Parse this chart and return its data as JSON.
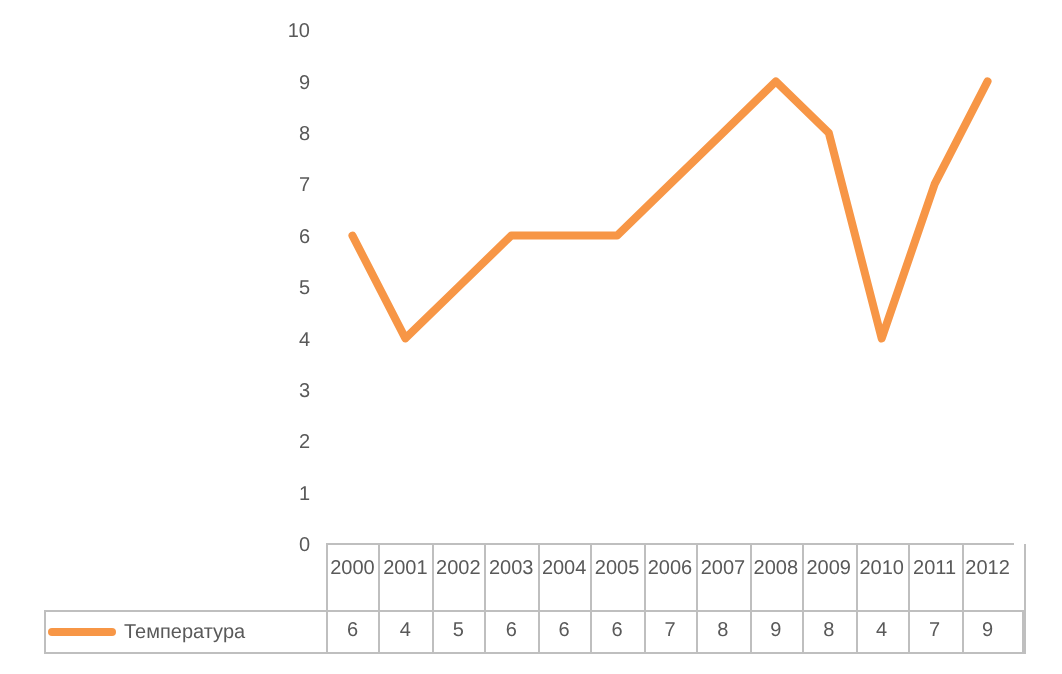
{
  "chart_data": {
    "type": "line",
    "categories": [
      "2000",
      "2001",
      "2002",
      "2003",
      "2004",
      "2005",
      "2006",
      "2007",
      "2008",
      "2009",
      "2010",
      "2011",
      "2012"
    ],
    "series": [
      {
        "name": "Температура",
        "color": "#f79646",
        "values": [
          6,
          4,
          5,
          6,
          6,
          6,
          7,
          8,
          9,
          8,
          4,
          7,
          9
        ]
      }
    ],
    "ylim": [
      0,
      10
    ],
    "yticks": [
      0,
      1,
      2,
      3,
      4,
      5,
      6,
      7,
      8,
      9,
      10
    ],
    "legend": "bottom",
    "data_labels": true,
    "marker": "none",
    "line_style": "solid"
  }
}
